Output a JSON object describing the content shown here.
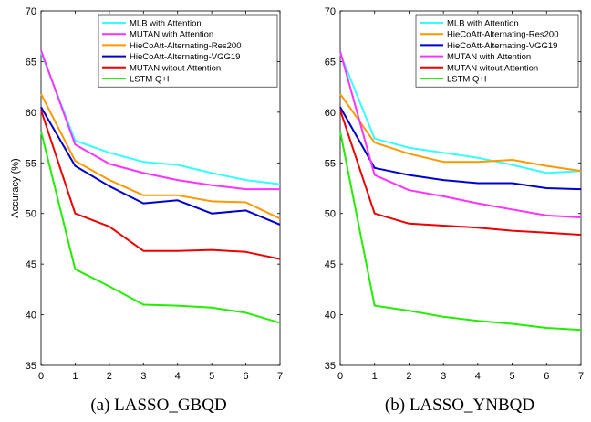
{
  "chart_data": [
    {
      "type": "line",
      "caption": "(a) LASSO_GBQD",
      "ylabel": "Accuracy (%)",
      "xlim": [
        0,
        7
      ],
      "ylim": [
        35,
        70
      ],
      "xticks": [
        0,
        1,
        2,
        3,
        4,
        5,
        6,
        7
      ],
      "yticks": [
        35,
        40,
        45,
        50,
        55,
        60,
        65,
        70
      ],
      "grid": false,
      "legend": "top-right",
      "x": [
        0,
        1,
        2,
        3,
        4,
        5,
        6,
        7
      ],
      "series": [
        {
          "name": "MLB with Attention",
          "color": "#33ffff",
          "values": [
            65.9,
            57.2,
            56.0,
            55.1,
            54.8,
            54.0,
            53.3,
            52.9
          ]
        },
        {
          "name": "MUTAN with Attention",
          "color": "#ff33ff",
          "values": [
            66.1,
            56.8,
            54.9,
            54.0,
            53.3,
            52.8,
            52.4,
            52.4
          ]
        },
        {
          "name": "HieCoAtt-Alternating-Res200",
          "color": "#ff9900",
          "values": [
            61.8,
            55.2,
            53.3,
            51.8,
            51.8,
            51.2,
            51.1,
            49.5
          ]
        },
        {
          "name": "HieCoAtt-Alternating-VGG19",
          "color": "#0000cc",
          "values": [
            60.5,
            54.7,
            52.7,
            51.0,
            51.3,
            50.0,
            50.3,
            48.9
          ]
        },
        {
          "name": "MUTAN witout Attention",
          "color": "#ee0000",
          "values": [
            60.2,
            50.0,
            48.7,
            46.3,
            46.3,
            46.4,
            46.2,
            45.5
          ]
        },
        {
          "name": "LSTM Q+I",
          "color": "#22ee00",
          "values": [
            58.1,
            44.5,
            42.8,
            41.0,
            40.9,
            40.7,
            40.2,
            39.2
          ]
        }
      ]
    },
    {
      "type": "line",
      "caption": "(b) LASSO_YNBQD",
      "ylabel": "",
      "xlim": [
        0,
        7
      ],
      "ylim": [
        35,
        70
      ],
      "xticks": [
        0,
        1,
        2,
        3,
        4,
        5,
        6,
        7
      ],
      "yticks": [
        35,
        40,
        45,
        50,
        55,
        60,
        65,
        70
      ],
      "grid": false,
      "legend": "top-right",
      "x": [
        0,
        1,
        2,
        3,
        4,
        5,
        6,
        7
      ],
      "series": [
        {
          "name": "MLB with Attention",
          "color": "#33ffff",
          "values": [
            65.8,
            57.4,
            56.5,
            56.0,
            55.5,
            54.8,
            54.0,
            54.2
          ]
        },
        {
          "name": "HieCoAtt-Alternating-Res200",
          "color": "#ff9900",
          "values": [
            61.8,
            57.0,
            55.9,
            55.1,
            55.1,
            55.3,
            54.7,
            54.2
          ]
        },
        {
          "name": "HieCoAtt-Alternating-VGG19",
          "color": "#0000cc",
          "values": [
            60.5,
            54.5,
            53.8,
            53.3,
            53.0,
            53.0,
            52.5,
            52.4
          ]
        },
        {
          "name": "MUTAN with Attention",
          "color": "#ff33ff",
          "values": [
            66.0,
            53.8,
            52.3,
            51.7,
            51.0,
            50.4,
            49.8,
            49.6
          ]
        },
        {
          "name": "MUTAN witout Attention",
          "color": "#ee0000",
          "values": [
            60.2,
            50.0,
            49.0,
            48.8,
            48.6,
            48.3,
            48.1,
            47.9
          ]
        },
        {
          "name": "LSTM Q+I",
          "color": "#22ee00",
          "values": [
            58.1,
            40.9,
            40.4,
            39.8,
            39.4,
            39.1,
            38.7,
            38.5
          ]
        }
      ]
    }
  ]
}
